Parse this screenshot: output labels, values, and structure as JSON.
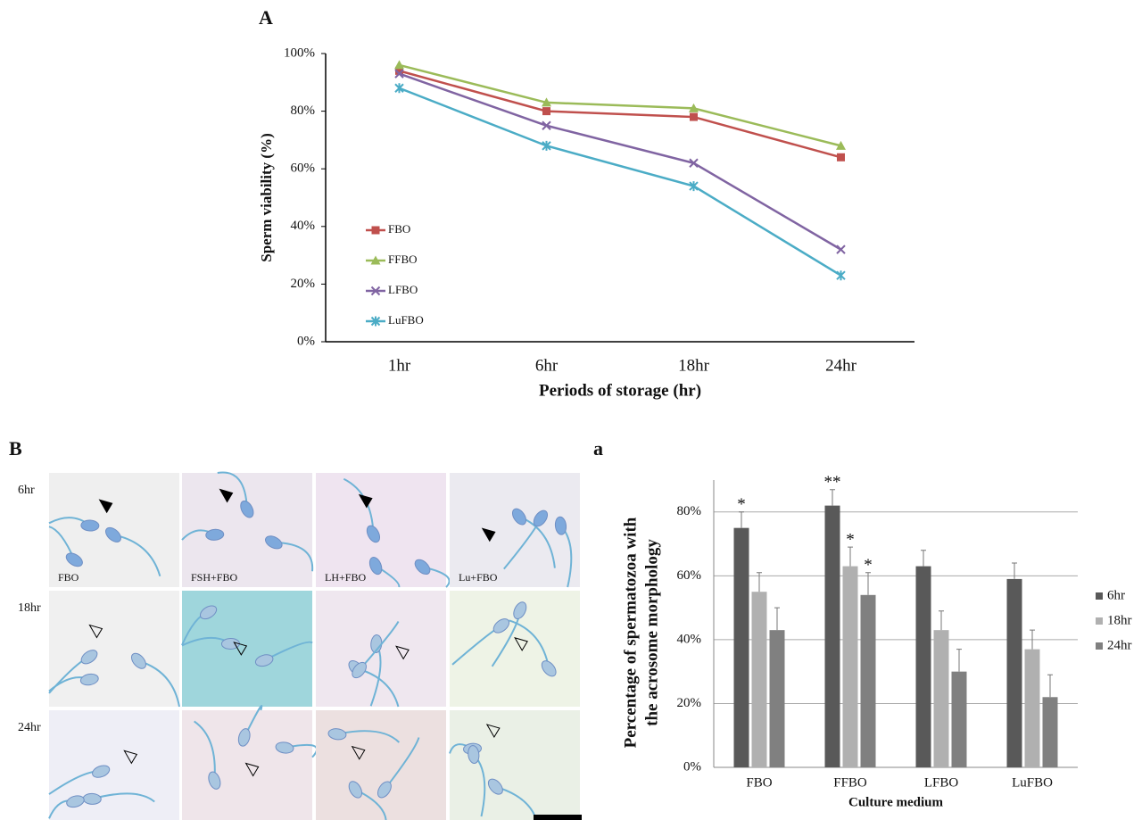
{
  "chart_data": [
    {
      "type": "line",
      "panel_label": "A",
      "x_label": "Periods of storage (hr)",
      "y_label": "Sperm viability (%)",
      "categories": [
        "1hr",
        "6hr",
        "18hr",
        "24hr"
      ],
      "ylim": [
        0,
        100
      ],
      "yticks": [
        {
          "value": 0,
          "label": "0%"
        },
        {
          "value": 20,
          "label": "20%"
        },
        {
          "value": 40,
          "label": "40%"
        },
        {
          "value": 60,
          "label": "60%"
        },
        {
          "value": 80,
          "label": "80%"
        },
        {
          "value": 100,
          "label": "100%"
        }
      ],
      "series": [
        {
          "name": "FBO",
          "color": "#c0504d",
          "marker": "square",
          "values": [
            94,
            80,
            78,
            64
          ]
        },
        {
          "name": "FFBO",
          "color": "#9bbb59",
          "marker": "triangle",
          "values": [
            96,
            83,
            81,
            68
          ]
        },
        {
          "name": "LFBO",
          "color": "#8064a2",
          "marker": "x",
          "values": [
            93,
            75,
            62,
            32
          ]
        },
        {
          "name": "LuFBO",
          "color": "#4bacc6",
          "marker": "star",
          "values": [
            88,
            68,
            54,
            23
          ]
        }
      ]
    },
    {
      "type": "bar",
      "panel_label": "a",
      "x_label": "Culture medium",
      "y_label": [
        "Percentage of spermatozoa with",
        "the acrosome morphology"
      ],
      "categories": [
        "FBO",
        "FFBO",
        "LFBO",
        "LuFBO"
      ],
      "ylim": [
        0,
        90
      ],
      "grid": true,
      "yticks": [
        {
          "value": 0,
          "label": "0%"
        },
        {
          "value": 20,
          "label": "20%"
        },
        {
          "value": 40,
          "label": "40%"
        },
        {
          "value": 60,
          "label": "60%"
        },
        {
          "value": 80,
          "label": "80%"
        }
      ],
      "series": [
        {
          "name": "6hr",
          "color": "#595959",
          "values": [
            75,
            82,
            63,
            59
          ],
          "errors": [
            5,
            5,
            5,
            5
          ],
          "significance": [
            "*",
            "**",
            null,
            null
          ]
        },
        {
          "name": "18hr",
          "color": "#b0b0b0",
          "values": [
            55,
            63,
            43,
            37
          ],
          "errors": [
            6,
            6,
            6,
            6
          ],
          "significance": [
            null,
            "*",
            null,
            null
          ]
        },
        {
          "name": "24hr",
          "color": "#808080",
          "values": [
            43,
            54,
            30,
            22
          ],
          "errors": [
            7,
            7,
            7,
            7
          ],
          "significance": [
            null,
            "*",
            null,
            null
          ]
        }
      ]
    }
  ],
  "micrographs": {
    "panel_label": "B",
    "row_labels": [
      "6hr",
      "18hr",
      "24hr"
    ],
    "cell_labels": [
      "FBO",
      "FSH+FBO",
      "LH+FBO",
      "Lu+FBO"
    ]
  }
}
